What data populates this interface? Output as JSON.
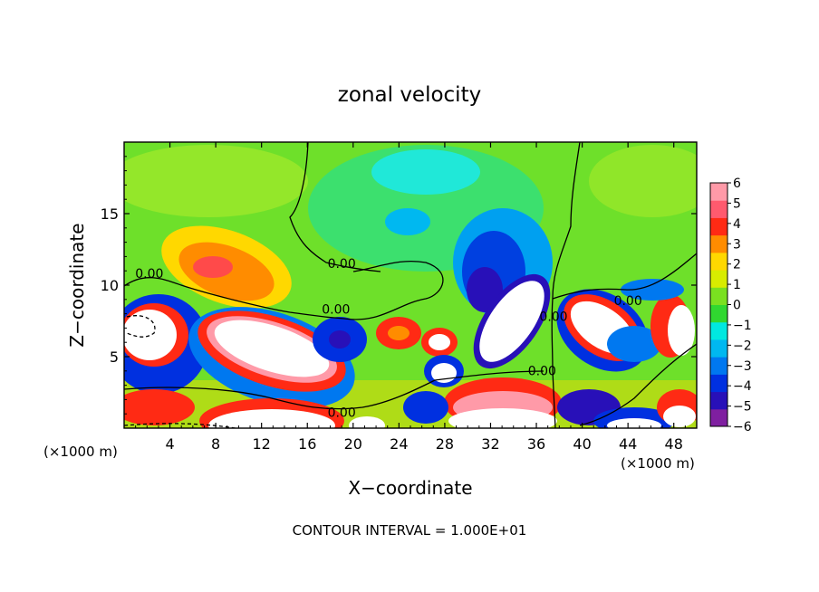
{
  "chart_data": {
    "type": "heatmap",
    "title": "zonal velocity",
    "xlabel": "X−coordinate",
    "ylabel": "Z−coordinate",
    "x_unit_note": "(×1000 m)",
    "y_unit_note": "(×1000 m)",
    "xlim": [
      0,
      50
    ],
    "ylim": [
      0,
      20
    ],
    "x_ticks": [
      4,
      8,
      12,
      16,
      20,
      24,
      28,
      32,
      36,
      40,
      44,
      48
    ],
    "y_ticks": [
      5,
      10,
      15
    ],
    "footer": "CONTOUR INTERVAL = 1.000E+01",
    "colorbar": {
      "ticks": [
        6,
        5,
        4,
        3,
        2,
        1,
        0,
        -1,
        -2,
        -3,
        -4,
        -5,
        -6
      ],
      "tick_labels": [
        "6",
        "5",
        "4",
        "3",
        "2",
        "1",
        "0",
        "−1",
        "−2",
        "−3",
        "−4",
        "−5",
        "−6"
      ],
      "range": [
        -6,
        6
      ],
      "colors": [
        "#7f1fa0",
        "#2810b8",
        "#0030e0",
        "#0078f0",
        "#00b8f0",
        "#00e8e0",
        "#30d830",
        "#7ae020",
        "#d8ec00",
        "#ffd800",
        "#ff8c00",
        "#ff2a14",
        "#ff5a6e",
        "#ff9aa8"
      ]
    },
    "contour_labels": [
      {
        "text": "0.00",
        "x": 2.2,
        "z": 10.5
      },
      {
        "text": "0.00",
        "x": 18.5,
        "z": 8.0
      },
      {
        "text": "0.00",
        "x": 19.0,
        "z": 0.8
      },
      {
        "text": "0.00",
        "x": 19.0,
        "z": 11.2
      },
      {
        "text": "0.00",
        "x": 36.5,
        "z": 3.7
      },
      {
        "text": "0.00",
        "x": 37.5,
        "z": 7.5
      },
      {
        "text": "0.00",
        "x": 44.0,
        "z": 8.6
      }
    ]
  }
}
